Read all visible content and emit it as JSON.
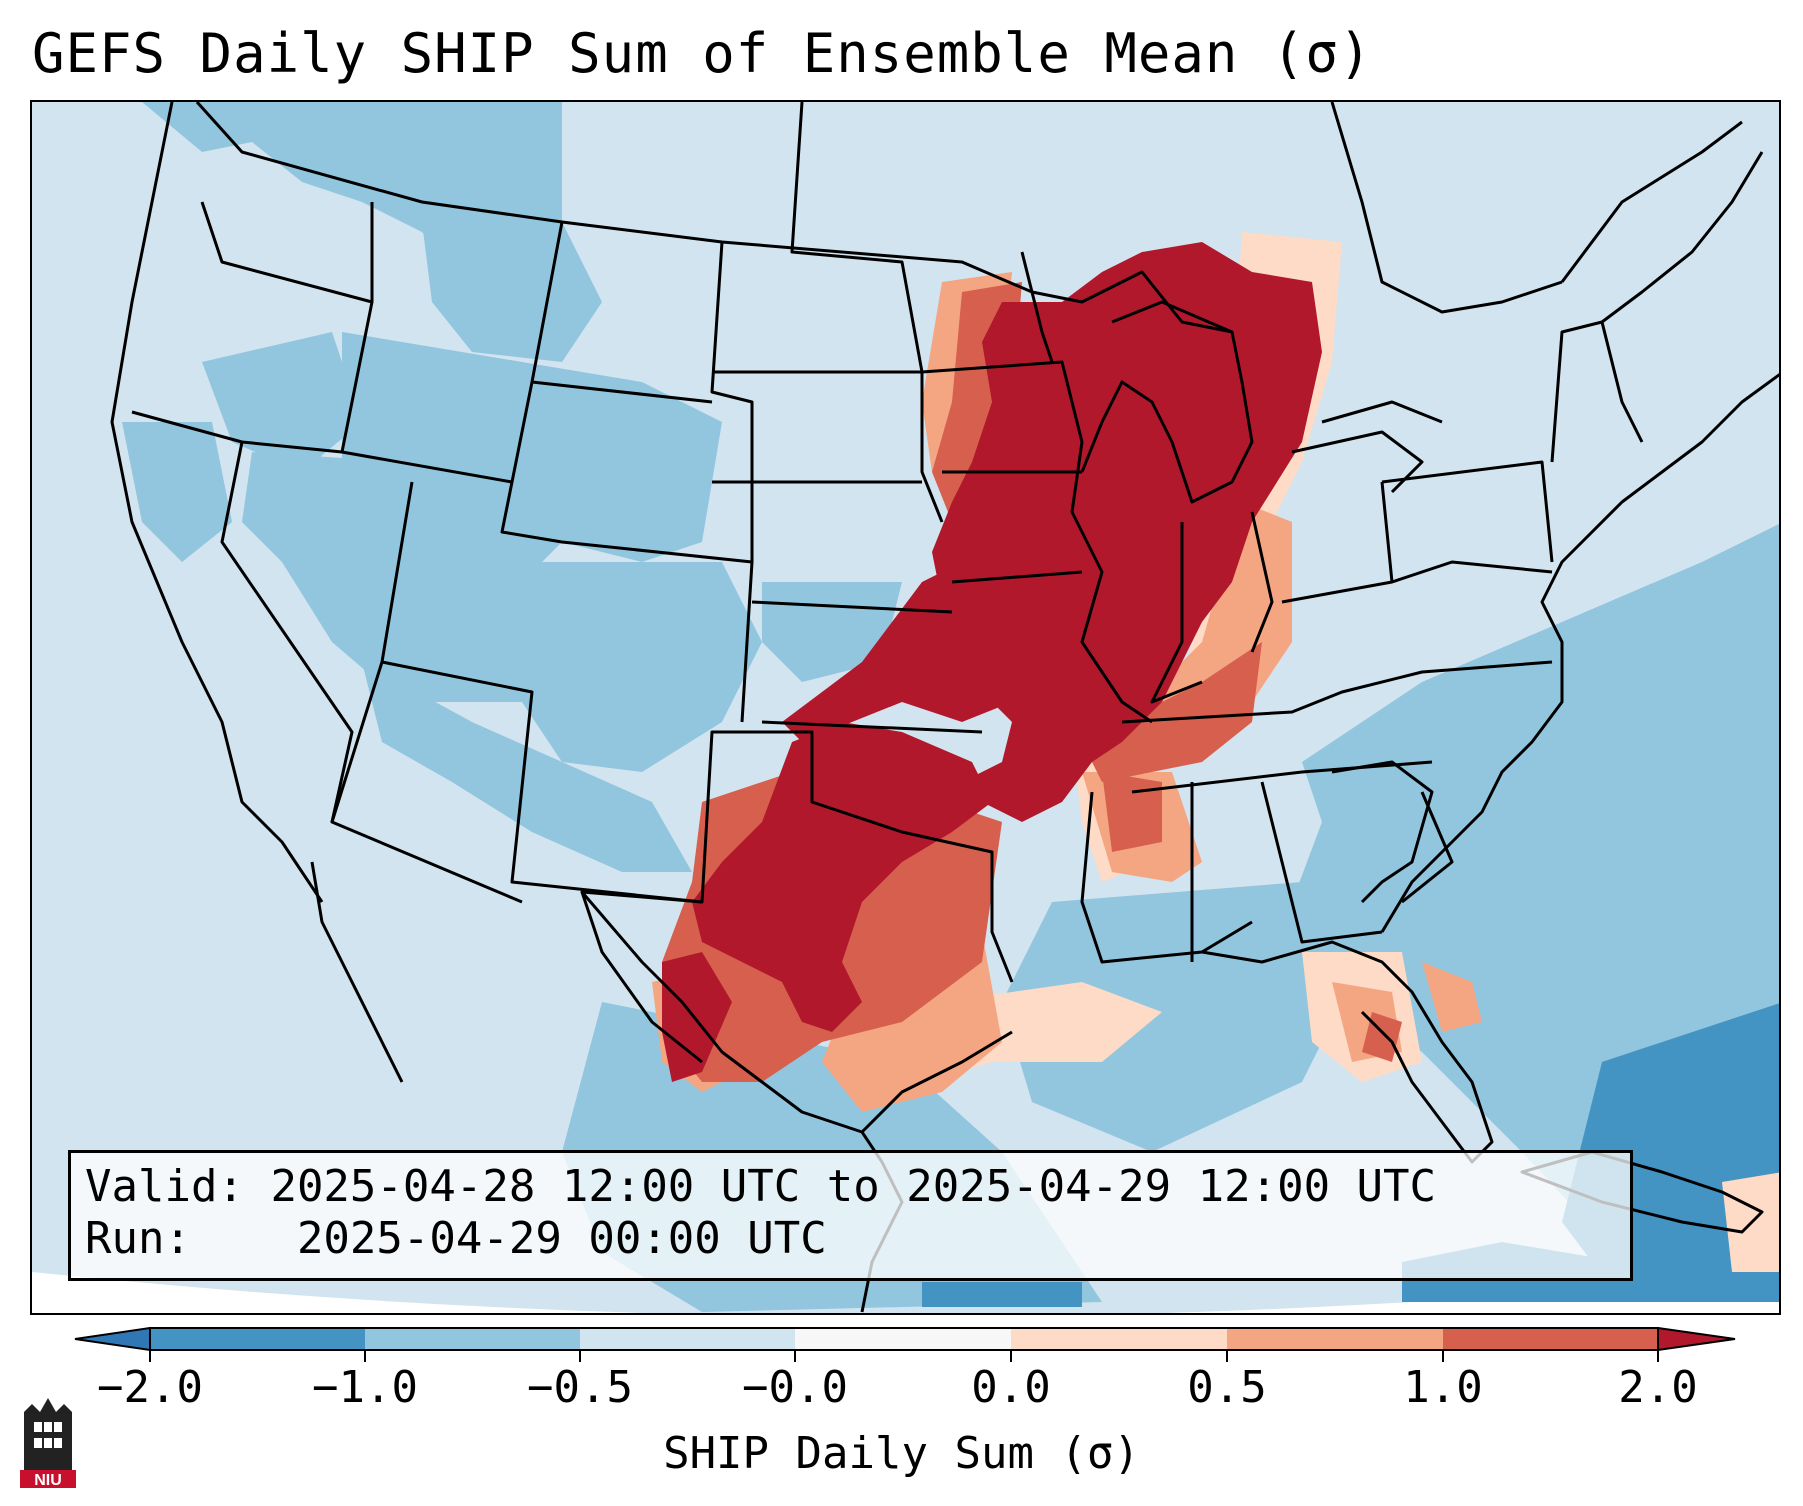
{
  "title": "GEFS Daily SHIP Sum of Ensemble Mean (σ)",
  "info": {
    "valid_label": "Valid:",
    "valid_value": "2025-04-28 12:00 UTC to 2025-04-29 12:00 UTC",
    "run_label": "Run:",
    "run_value": "2025-04-29 00:00 UTC"
  },
  "colorbar": {
    "label": "SHIP Daily Sum (σ)",
    "ticks": [
      "−2.0",
      "−1.0",
      "−0.5",
      "−0.0",
      "0.0",
      "0.5",
      "1.0",
      "2.0"
    ],
    "colors": {
      "below_min": "#2f78b5",
      "bin_m2_m1": "#4393c3",
      "bin_m1_m05": "#92c5de",
      "bin_m05_0": "#d1e5f0",
      "bin_0_0": "#f7f7f7",
      "bin_0_05": "#fddbc7",
      "bin_05_1": "#f4a582",
      "bin_1_2": "#d6604d",
      "above_max": "#b2182b"
    }
  },
  "map": {
    "projection": "Lambert conformal, CONUS",
    "field_colors": {
      "background": "#d2e4ef",
      "negative_light": "#92c5de",
      "negative_dark": "#4393c3",
      "positive_light": "#fddbc7",
      "positive_mid": "#f4a582",
      "positive_high": "#d6604d",
      "positive_max": "#b2182b",
      "borders": "#000000"
    }
  },
  "logo": {
    "text": "NIU"
  }
}
